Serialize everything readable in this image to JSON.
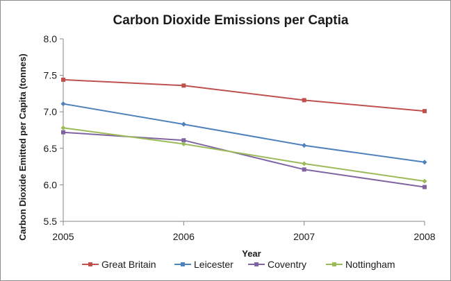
{
  "chart_data": {
    "type": "line",
    "title": "Carbon Dioxide Emissions per Captia",
    "xlabel": "Year",
    "ylabel": "Carbon Dioxide Emitted per Capita (tonnes)",
    "categories": [
      "2005",
      "2006",
      "2007",
      "2008"
    ],
    "ylim": [
      5.5,
      8.0
    ],
    "yticks": [
      "5.5",
      "6.0",
      "6.5",
      "7.0",
      "7.5",
      "8.0"
    ],
    "grid": false,
    "legend_position": "bottom",
    "series": [
      {
        "name": "Great Britain",
        "color": "#c0504d",
        "values": [
          7.44,
          7.36,
          7.16,
          7.01
        ]
      },
      {
        "name": "Leicester",
        "color": "#4f81bd",
        "values": [
          7.11,
          6.83,
          6.54,
          6.31
        ]
      },
      {
        "name": "Coventry",
        "color": "#8064a2",
        "values": [
          6.72,
          6.61,
          6.21,
          5.97
        ]
      },
      {
        "name": "Nottingham",
        "color": "#9bbb59",
        "values": [
          6.78,
          6.56,
          6.29,
          6.05
        ]
      }
    ]
  }
}
